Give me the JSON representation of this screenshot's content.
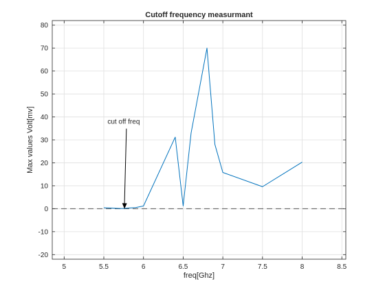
{
  "chart_data": {
    "type": "line",
    "title": "Cutoff frequency measurmant",
    "xlabel": "freq[Ghz]",
    "ylabel": "Max values Volt[mv]",
    "xlim": [
      4.85,
      8.55
    ],
    "ylim": [
      -22,
      82
    ],
    "xticks": [
      5,
      5.5,
      6,
      6.5,
      7,
      7.5,
      8,
      8.5
    ],
    "xtick_labels": [
      "5",
      "5.5",
      "6",
      "6.5",
      "7",
      "7.5",
      "8",
      "8.5"
    ],
    "yticks": [
      -20,
      -10,
      0,
      10,
      20,
      30,
      40,
      50,
      60,
      70,
      80
    ],
    "ytick_labels": [
      "-20",
      "-10",
      "0",
      "10",
      "20",
      "30",
      "40",
      "50",
      "60",
      "70",
      "80"
    ],
    "grid": true,
    "series": [
      {
        "color": "#0072bd",
        "x": [
          5.5,
          5.6,
          5.7,
          5.75,
          5.8,
          5.9,
          6.0,
          6.4,
          6.5,
          6.6,
          6.8,
          6.9,
          7.0,
          7.5,
          8.0
        ],
        "y": [
          0.4,
          0.3,
          0.1,
          0.1,
          0.3,
          0.5,
          1.2,
          31.2,
          1.2,
          33.0,
          70.0,
          28.0,
          15.8,
          9.6,
          20.3
        ]
      }
    ],
    "reference_line": {
      "y": 0,
      "style": "dashed",
      "color": "#555555"
    },
    "annotations": [
      {
        "text": "cut off freq",
        "text_x": 5.75,
        "text_y": 37,
        "arrow_to_x": 5.76,
        "arrow_to_y": 0
      }
    ]
  }
}
